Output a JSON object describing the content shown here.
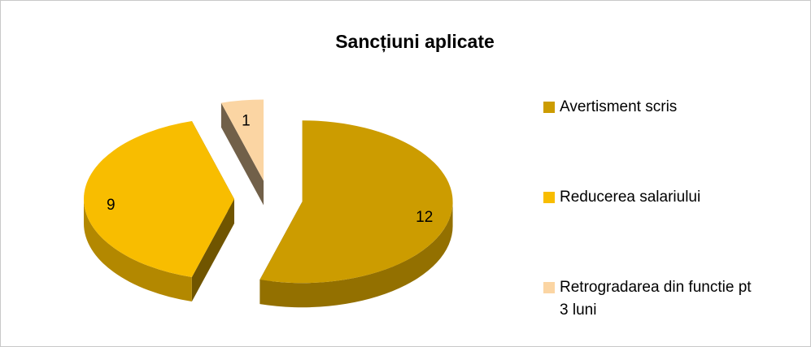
{
  "chart_data": {
    "type": "pie",
    "title": "Sancțiuni aplicate",
    "categories": [
      "Avertisment scris",
      "Reducerea salariului",
      "Retrogradarea din functie pt 3 luni"
    ],
    "values": [
      12,
      9,
      1
    ],
    "colors": [
      "#cc9c00",
      "#f8bd00",
      "#fbd5a3"
    ],
    "legend": "right"
  }
}
